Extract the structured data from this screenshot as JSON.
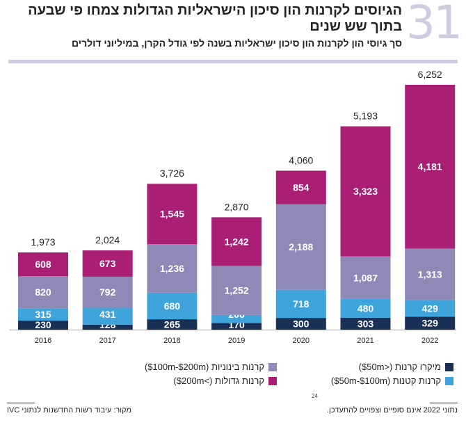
{
  "header": {
    "number": "31",
    "title": "הגיוסים לקרנות הון סיכון הישראליות הגדולות צמחו פי שבעה בתוך שש שנים",
    "subtitle": "סך גיוסי הון לקרנות הון סיכון ישראליות בשנה לפי גודל הקרן, במיליוני דולרים"
  },
  "chart_data": {
    "type": "bar",
    "stacked": true,
    "categories": [
      "2016",
      "2017",
      "2018",
      "2019",
      "2020",
      "2021",
      "2022"
    ],
    "series": [
      {
        "name": "מיקרו קרנות (<$50m)",
        "color": "#1b3057",
        "values": [
          230,
          128,
          265,
          170,
          300,
          303,
          329
        ]
      },
      {
        "name": "קרנות קטנות ($50m-$100m)",
        "color": "#3fa3dc",
        "values": [
          315,
          431,
          680,
          206,
          718,
          480,
          429
        ]
      },
      {
        "name": "קרנות בינוניות ($100m-$200m)",
        "color": "#8f89b8",
        "values": [
          820,
          792,
          1236,
          1252,
          2188,
          1087,
          1313
        ]
      },
      {
        "name": "קרנות גדולות (>$200m)",
        "color": "#aa1e76",
        "values": [
          608,
          673,
          1545,
          1242,
          854,
          3323,
          4181
        ]
      }
    ],
    "totals": [
      "1,973",
      "2,024",
      "3,726",
      "2,870",
      "4,060",
      "5,193",
      "6,252"
    ],
    "ylim": [
      0,
      6252
    ],
    "grid": false,
    "legend": "bottom"
  },
  "footer": {
    "page": "24",
    "note": "נתוני 2022 אינם סופיים וצפויים להתעדכן.",
    "source": "מקור: עיבוד רשות החדשנות לנתוני IVC"
  }
}
